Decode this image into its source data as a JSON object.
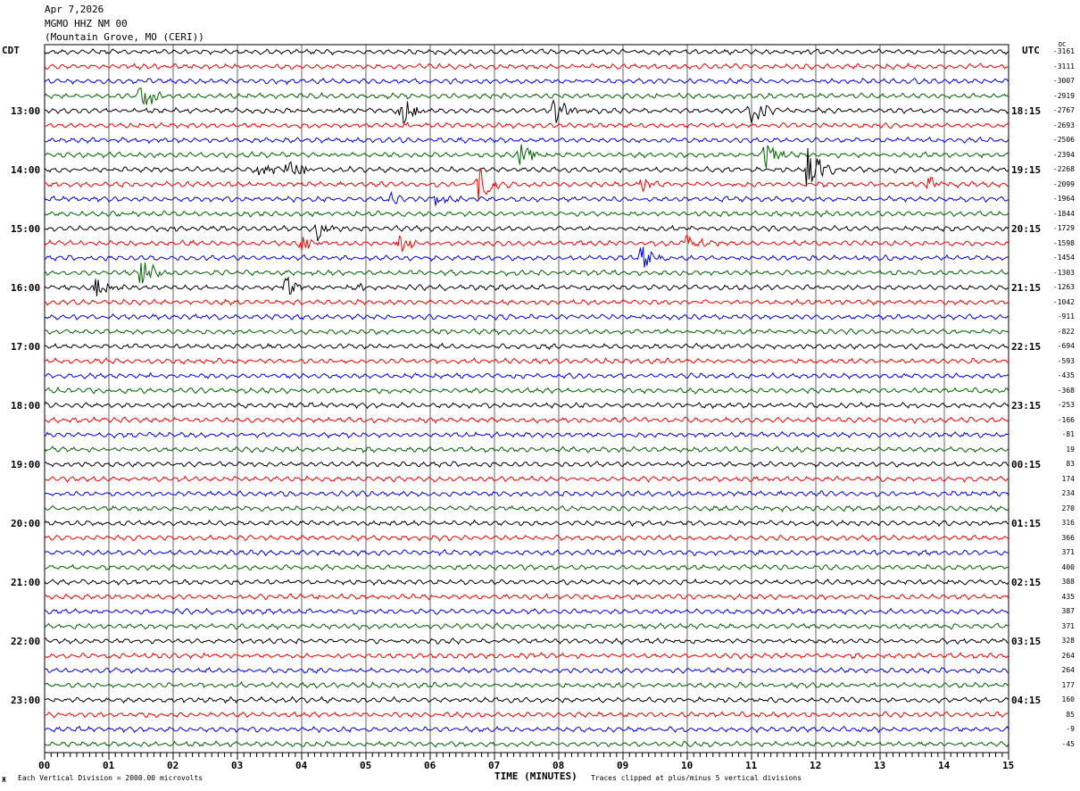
{
  "header": {
    "date": "Apr 7,2026",
    "station": "MGMO HHZ NM 00",
    "location": "(Mountain Grove, MO (CERI))"
  },
  "left_tz": "CDT",
  "right_tz": "UTC",
  "dc_label": "DC",
  "footer": {
    "scale": "Each Vertical Division = 2000.00 microvolts",
    "xlabel": "TIME (MINUTES)",
    "clip": "Traces clipped at plus/minus 5 vertical divisions",
    "corner": "Ж"
  },
  "chart_data": {
    "type": "line",
    "subtype": "helicorder",
    "xlabel": "TIME (MINUTES)",
    "xlim": [
      0,
      15
    ],
    "xticks": [
      "00",
      "01",
      "02",
      "03",
      "04",
      "05",
      "06",
      "07",
      "08",
      "09",
      "10",
      "11",
      "12",
      "13",
      "14",
      "15"
    ],
    "trace_colors": [
      "#000000",
      "#ff0000",
      "#0000ff",
      "#006400"
    ],
    "left_hour_labels": [
      "13:00",
      "14:00",
      "15:00",
      "16:00",
      "17:00",
      "18:00",
      "19:00",
      "20:00",
      "21:00",
      "22:00",
      "23:00"
    ],
    "right_hour_labels": [
      "18:15",
      "19:15",
      "20:15",
      "21:15",
      "22:15",
      "23:15",
      "00:15",
      "01:15",
      "02:15",
      "03:15",
      "04:15"
    ],
    "dc_offsets": [
      "-3161",
      "-3111",
      "-3007",
      "-2919",
      "-2767",
      "-2693",
      "-2506",
      "-2394",
      "-2268",
      "-2099",
      "-1964",
      "-1844",
      "-1729",
      "-1598",
      "-1454",
      "-1303",
      "-1263",
      "-1042",
      "-911",
      "-822",
      "-694",
      "-593",
      "-435",
      "-368",
      "-253",
      "-166",
      "-81",
      "19",
      "83",
      "174",
      "234",
      "270",
      "316",
      "366",
      "371",
      "400",
      "388",
      "435",
      "387",
      "371",
      "328",
      "264",
      "264",
      "177",
      "160",
      "85",
      "-9",
      "-45"
    ],
    "events": [
      {
        "trace": 3,
        "minute": 1.49,
        "amp": 4
      },
      {
        "trace": 4,
        "minute": 5.55,
        "amp": 3.5
      },
      {
        "trace": 4,
        "minute": 7.92,
        "amp": 3
      },
      {
        "trace": 4,
        "minute": 10.97,
        "amp": 4
      },
      {
        "trace": 7,
        "minute": 7.39,
        "amp": 2.5
      },
      {
        "trace": 7,
        "minute": 11.2,
        "amp": 3
      },
      {
        "trace": 8,
        "minute": 3.3,
        "amp": 1.5
      },
      {
        "trace": 8,
        "minute": 3.78,
        "amp": 2.8
      },
      {
        "trace": 8,
        "minute": 11.87,
        "amp": 5
      },
      {
        "trace": 9,
        "minute": 6.74,
        "amp": 4
      },
      {
        "trace": 9,
        "minute": 9.28,
        "amp": 1.6
      },
      {
        "trace": 9,
        "minute": 13.75,
        "amp": 1.6
      },
      {
        "trace": 10,
        "minute": 5.38,
        "amp": 1.2
      },
      {
        "trace": 10,
        "minute": 6.07,
        "amp": 1.4
      },
      {
        "trace": 12,
        "minute": 4.24,
        "amp": 2.5
      },
      {
        "trace": 13,
        "minute": 3.96,
        "amp": 2
      },
      {
        "trace": 13,
        "minute": 5.49,
        "amp": 2.5
      },
      {
        "trace": 13,
        "minute": 10.0,
        "amp": 3
      },
      {
        "trace": 14,
        "minute": 9.26,
        "amp": 3
      },
      {
        "trace": 15,
        "minute": 1.49,
        "amp": 4
      },
      {
        "trace": 16,
        "minute": 0.8,
        "amp": 2.5
      },
      {
        "trace": 16,
        "minute": 3.72,
        "amp": 2.5
      },
      {
        "trace": 16,
        "minute": 4.86,
        "amp": 0.8
      }
    ]
  }
}
